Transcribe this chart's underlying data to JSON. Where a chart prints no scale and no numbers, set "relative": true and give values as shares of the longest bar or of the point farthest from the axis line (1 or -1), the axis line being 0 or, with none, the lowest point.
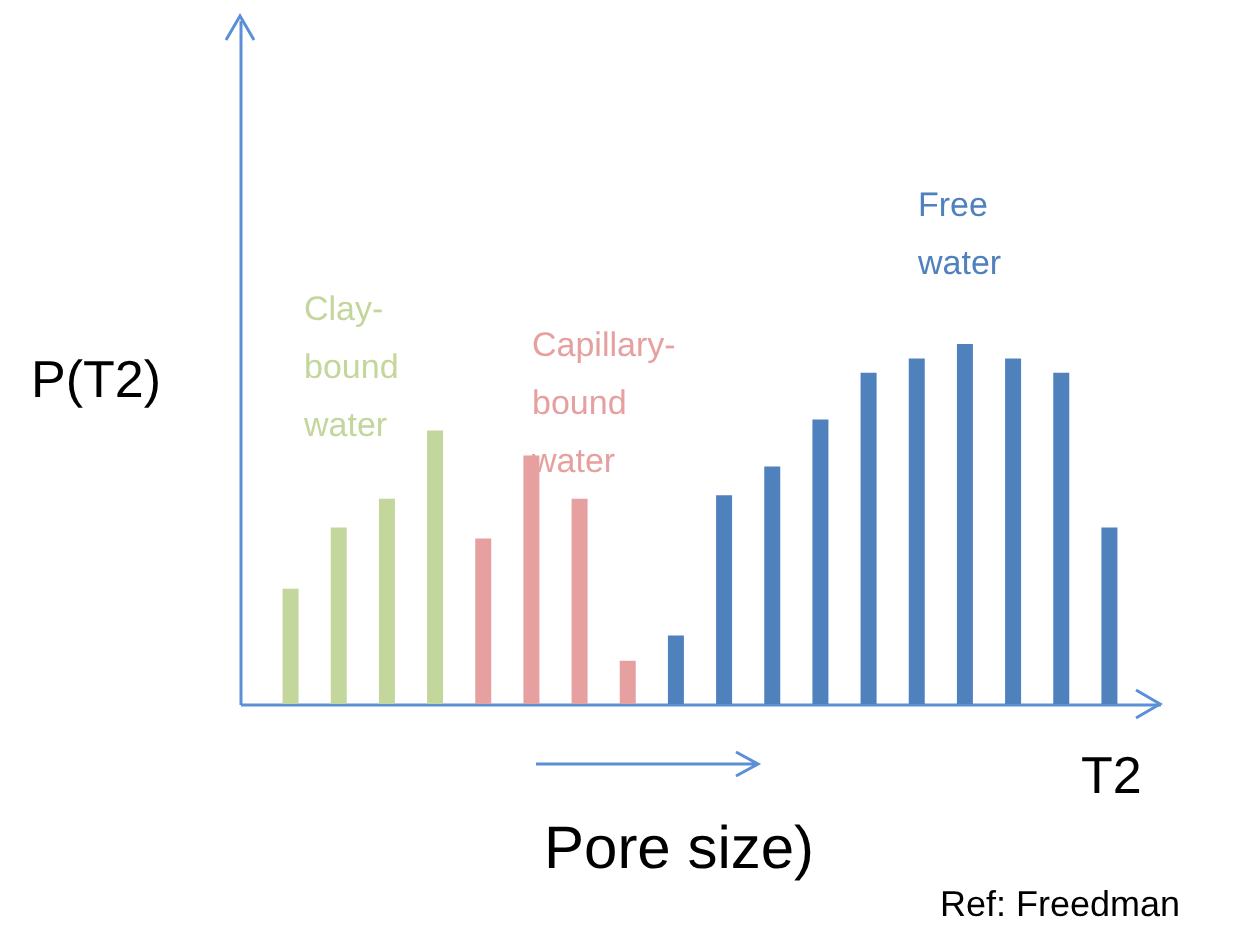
{
  "chart_data": {
    "type": "bar",
    "relative": true,
    "ylabel": "P(T2)",
    "xlabel": "T2",
    "categories": [
      null,
      null,
      null,
      null,
      null,
      null,
      null,
      null,
      null,
      null,
      null,
      null,
      null,
      null,
      null,
      null,
      null,
      null
    ],
    "values": [
      0.32,
      0.49,
      0.57,
      0.76,
      0.46,
      0.69,
      0.57,
      0.12,
      0.19,
      0.58,
      0.66,
      0.79,
      0.92,
      0.96,
      1,
      0.96,
      0.92,
      0.49
    ],
    "colors": [
      "#c3d69b",
      "#c3d69b",
      "#c3d69b",
      "#c3d69b",
      "#e6a0a0",
      "#e6a0a0",
      "#e6a0a0",
      "#e6a0a0",
      "#4f81bd",
      "#4f81bd",
      "#4f81bd",
      "#4f81bd",
      "#4f81bd",
      "#4f81bd",
      "#4f81bd",
      "#4f81bd",
      "#4f81bd",
      "#4f81bd"
    ],
    "annotations": [
      "Clay-\nbound\nwater",
      "Capillary-\nbound\nwater",
      "Free\nwater",
      "Pore size)",
      "Ref: Freedman"
    ]
  }
}
